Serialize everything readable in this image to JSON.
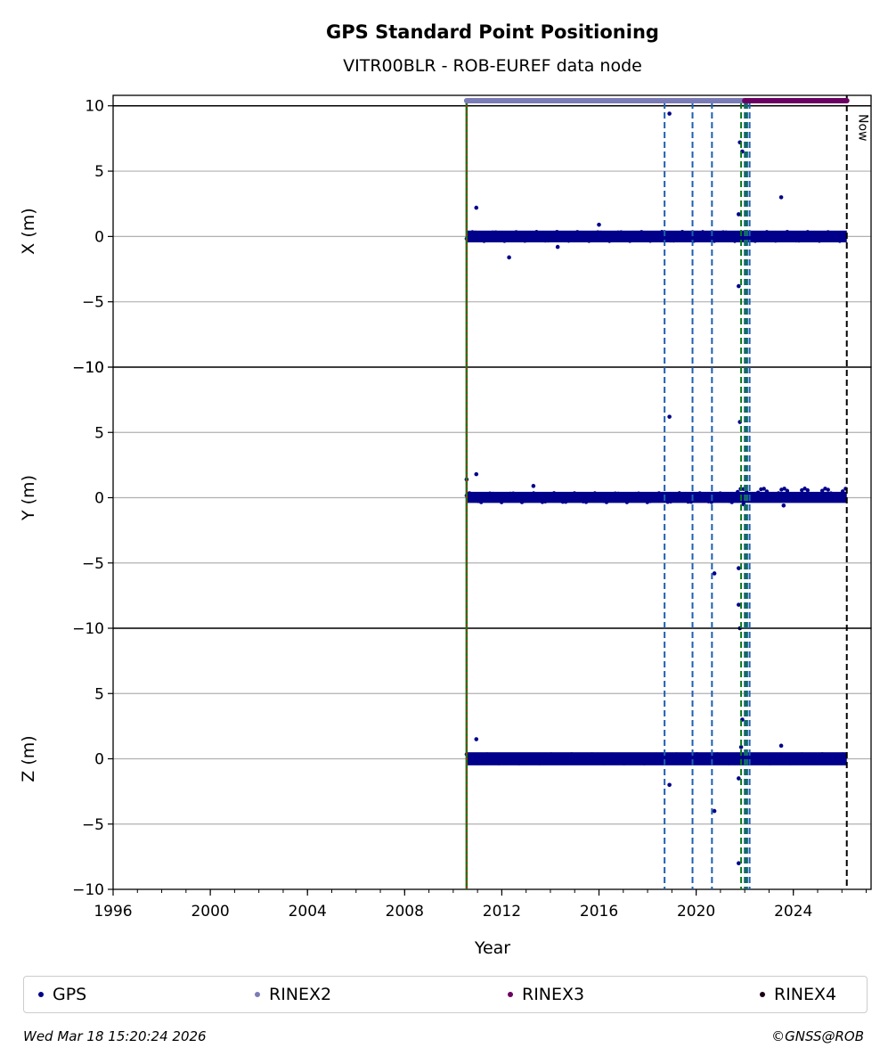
{
  "chart_data": {
    "type": "scatter",
    "title": "GPS Standard Point Positioning",
    "subtitle": "VITR00BLR - ROB-EUREF data node",
    "xlabel": "Year",
    "xlim": [
      1996,
      2027.2
    ],
    "x_ticks": [
      "1996",
      "2000",
      "2004",
      "2008",
      "2012",
      "2016",
      "2020",
      "2024"
    ],
    "grid": "horizontal",
    "panels": [
      {
        "ylabel": "X (m)",
        "ylim": [
          -10,
          10.8
        ],
        "y_ticks": [
          "10",
          "5",
          "0",
          "−5",
          "−10"
        ],
        "band": [
          -0.45,
          0.45
        ],
        "points": [
          [
            2010.95,
            2.2
          ],
          [
            2012.3,
            -1.6
          ],
          [
            2014.3,
            -0.8
          ],
          [
            2018.9,
            9.4
          ],
          [
            2021.8,
            7.2
          ],
          [
            2021.9,
            6.5
          ],
          [
            2021.75,
            1.7
          ],
          [
            2021.75,
            -3.8
          ],
          [
            2023.5,
            3.0
          ],
          [
            2016.0,
            0.9
          ]
        ]
      },
      {
        "ylabel": "Y (m)",
        "ylim": [
          -10,
          10
        ],
        "y_ticks": [
          "−10",
          "5",
          "0",
          "−5"
        ],
        "band": [
          -0.4,
          0.45
        ],
        "points": [
          [
            2010.55,
            1.4
          ],
          [
            2010.95,
            1.8
          ],
          [
            2013.3,
            0.9
          ],
          [
            2018.9,
            6.2
          ],
          [
            2020.75,
            -5.8
          ],
          [
            2021.8,
            5.8
          ],
          [
            2021.75,
            -5.4
          ],
          [
            2021.75,
            -8.2
          ],
          [
            2021.8,
            -10.0
          ],
          [
            2021.95,
            -0.5
          ],
          [
            2023.6,
            -0.6
          ]
        ]
      },
      {
        "ylabel": "Z (m)",
        "ylim": [
          -10,
          10
        ],
        "y_ticks": [
          "−10",
          "5",
          "0",
          "−5",
          "−10"
        ],
        "band": [
          -0.5,
          0.5
        ],
        "points": [
          [
            2010.95,
            1.5
          ],
          [
            2018.9,
            -2.0
          ],
          [
            2020.75,
            -4.0
          ],
          [
            2021.75,
            -1.5
          ],
          [
            2021.75,
            -8.0
          ],
          [
            2021.9,
            3.0
          ],
          [
            2021.85,
            0.9
          ],
          [
            2023.5,
            1.0
          ]
        ]
      }
    ],
    "events": {
      "red_green": [
        2010.55
      ],
      "blue": [
        2018.7,
        2019.85,
        2020.65,
        2022.0,
        2022.1,
        2022.2
      ],
      "green": [
        2021.85,
        2022.05
      ],
      "now": 2026.2
    },
    "data_bars": [
      {
        "series": "RINEX2",
        "start": 2010.55,
        "end": 2022.0,
        "color": "#7b7bb8"
      },
      {
        "series": "RINEX3",
        "start": 2022.0,
        "end": 2026.2,
        "color": "#6a0062"
      }
    ],
    "now_label": "Now",
    "series": [
      {
        "name": "GPS",
        "color": "#00008b"
      },
      {
        "name": "RINEX2",
        "color": "#7b7bb8"
      },
      {
        "name": "RINEX3",
        "color": "#6a0062"
      },
      {
        "name": "RINEX4",
        "color": "#1a0014"
      }
    ]
  },
  "footer": {
    "timestamp": "Wed Mar 18 15:20:24 2026",
    "credit": "©GNSS@ROB"
  }
}
